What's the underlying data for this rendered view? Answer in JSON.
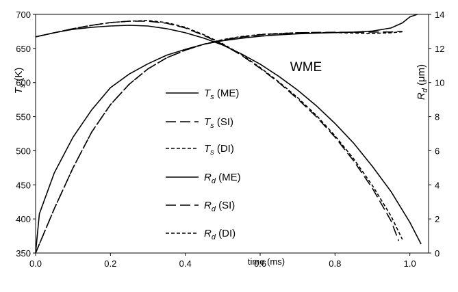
{
  "chart_data": {
    "type": "line",
    "xlabel": "time (ms)",
    "ylabel_left": "T_s (K)",
    "ylabel_right": "R_d (μm)",
    "annotation": "WME",
    "xlim": [
      0,
      1.05
    ],
    "ylim_left": [
      350,
      700
    ],
    "ylim_right": [
      0,
      14
    ],
    "xticks": [
      "0.0",
      "0.2",
      "0.4",
      "0.6",
      "0.8",
      "1.0"
    ],
    "yticks_left": [
      "350",
      "400",
      "450",
      "500",
      "550",
      "600",
      "650",
      "700"
    ],
    "yticks_right": [
      "0",
      "2",
      "4",
      "6",
      "8",
      "10",
      "12",
      "14"
    ],
    "legend_placement": "center-left",
    "series": [
      {
        "name": "T_s (ME)",
        "axis": "left",
        "dash": "solid",
        "x": [
          0.0,
          0.05,
          0.1,
          0.15,
          0.2,
          0.25,
          0.3,
          0.35,
          0.4,
          0.45,
          0.5,
          0.55,
          0.6,
          0.65,
          0.7,
          0.75,
          0.8,
          0.85,
          0.9,
          0.95,
          1.0,
          1.03
        ],
        "y": [
          667,
          673,
          678,
          681,
          683,
          684,
          683,
          679,
          673,
          665,
          655,
          642,
          627,
          609,
          589,
          566,
          540,
          511,
          477,
          440,
          395,
          363
        ]
      },
      {
        "name": "T_s (SI)",
        "axis": "left",
        "dash": "long",
        "x": [
          0.0,
          0.05,
          0.1,
          0.15,
          0.2,
          0.25,
          0.3,
          0.35,
          0.4,
          0.45,
          0.5,
          0.55,
          0.6,
          0.65,
          0.7,
          0.75,
          0.8,
          0.85,
          0.9,
          0.95,
          0.97
        ],
        "y": [
          667,
          673,
          679,
          684,
          688,
          690,
          690,
          687,
          680,
          669,
          656,
          640,
          621,
          600,
          576,
          550,
          520,
          485,
          445,
          397,
          368
        ]
      },
      {
        "name": "T_s (DI)",
        "axis": "left",
        "dash": "short",
        "x": [
          0.0,
          0.05,
          0.1,
          0.15,
          0.2,
          0.25,
          0.3,
          0.35,
          0.4,
          0.45,
          0.5,
          0.55,
          0.6,
          0.65,
          0.7,
          0.75,
          0.8,
          0.85,
          0.9,
          0.95,
          0.98
        ],
        "y": [
          667,
          673,
          679,
          684,
          688,
          690,
          691,
          688,
          681,
          670,
          657,
          641,
          622,
          601,
          578,
          552,
          522,
          488,
          449,
          404,
          370
        ]
      },
      {
        "name": "R_d (ME)",
        "axis": "right",
        "dash": "solid",
        "x": [
          0.0,
          0.01,
          0.05,
          0.1,
          0.15,
          0.2,
          0.25,
          0.3,
          0.35,
          0.4,
          0.45,
          0.5,
          0.55,
          0.6,
          0.65,
          0.7,
          0.75,
          0.8,
          0.85,
          0.9,
          0.95,
          0.98,
          1.0,
          1.02
        ],
        "y": [
          0.0,
          2.3,
          4.7,
          6.8,
          8.4,
          9.7,
          10.5,
          11.1,
          11.6,
          11.95,
          12.25,
          12.45,
          12.6,
          12.72,
          12.8,
          12.86,
          12.9,
          12.93,
          12.96,
          13.02,
          13.2,
          13.5,
          13.85,
          14.0
        ]
      },
      {
        "name": "R_d (SI)",
        "axis": "right",
        "dash": "long",
        "x": [
          0.0,
          0.05,
          0.1,
          0.15,
          0.2,
          0.25,
          0.3,
          0.35,
          0.4,
          0.45,
          0.5,
          0.55,
          0.6,
          0.65,
          0.7,
          0.75,
          0.8,
          0.85,
          0.9,
          0.95,
          0.98
        ],
        "y": [
          0.0,
          2.6,
          5.0,
          7.1,
          8.7,
          9.9,
          10.8,
          11.45,
          11.9,
          12.25,
          12.5,
          12.67,
          12.8,
          12.87,
          12.92,
          12.94,
          12.95,
          12.95,
          12.96,
          12.97,
          13.0
        ]
      },
      {
        "name": "R_d (DI)",
        "axis": "right",
        "dash": "short",
        "x": [
          0.0,
          0.05,
          0.1,
          0.15,
          0.2,
          0.25,
          0.3,
          0.35,
          0.4,
          0.45,
          0.5,
          0.55,
          0.6,
          0.65,
          0.7,
          0.75,
          0.8,
          0.85,
          0.9,
          0.95,
          0.98
        ],
        "y": [
          0.0,
          2.6,
          5.0,
          7.1,
          8.7,
          9.9,
          10.8,
          11.45,
          11.9,
          12.25,
          12.52,
          12.7,
          12.82,
          12.88,
          12.92,
          12.93,
          12.93,
          12.9,
          12.88,
          12.92,
          12.98
        ]
      }
    ]
  }
}
